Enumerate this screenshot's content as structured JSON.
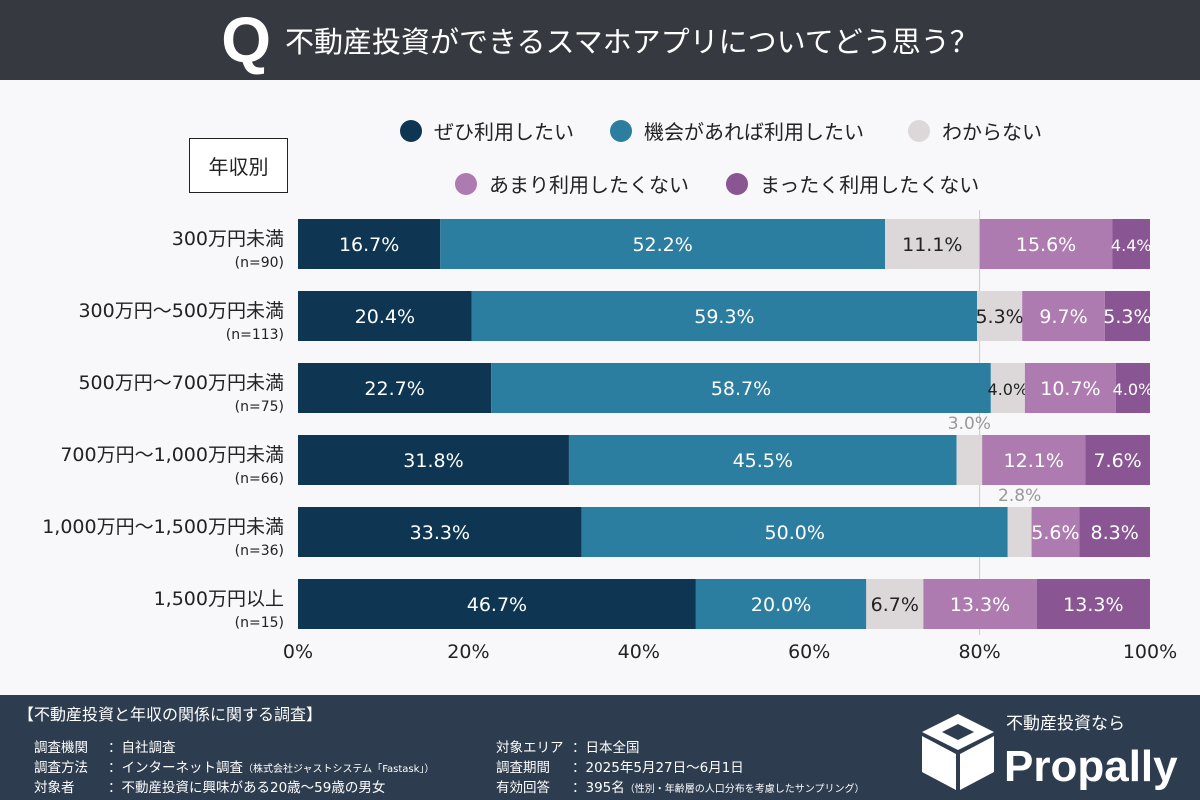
{
  "header": {
    "q_mark": "Q",
    "title": "不動産投資ができるスマホアプリについてどう思う？"
  },
  "category_box": "年収別",
  "chart_data": {
    "type": "bar",
    "orientation": "horizontal",
    "stacked": true,
    "categories": [
      "300万円未満",
      "300万円～500万円未満",
      "500万円～700万円未満",
      "700万円～1,000万円未満",
      "1,000万円～1,500万円未満",
      "1,500万円以上"
    ],
    "sample_sizes": [
      "(n=90)",
      "(n=113)",
      "(n=75)",
      "(n=66)",
      "(n=36)",
      "(n=15)"
    ],
    "series": [
      {
        "name": "ぜひ利用したい",
        "color": "#0e3652",
        "values": [
          16.7,
          20.4,
          22.7,
          31.8,
          33.3,
          46.7
        ]
      },
      {
        "name": "機会があれば利用したい",
        "color": "#2c7ea0",
        "values": [
          52.2,
          59.3,
          58.7,
          45.5,
          50.0,
          20.0
        ]
      },
      {
        "name": "わからない",
        "color": "#dcd8da",
        "values": [
          11.1,
          5.3,
          4.0,
          3.0,
          2.8,
          6.7
        ]
      },
      {
        "name": "あまり利用したくない",
        "color": "#ae7bb0",
        "values": [
          15.6,
          9.7,
          10.7,
          12.1,
          5.6,
          13.3
        ]
      },
      {
        "name": "まったく利用したくない",
        "color": "#895593",
        "values": [
          4.4,
          5.3,
          4.0,
          7.6,
          8.3,
          13.3
        ]
      }
    ],
    "xlim": [
      0,
      100
    ],
    "xticks": [
      "0%",
      "20%",
      "40%",
      "60%",
      "80%",
      "100%"
    ],
    "legend_placement": "top"
  },
  "footer": {
    "title": "【不動産投資と年収の関係に関する調査】",
    "rows": [
      {
        "label": "調査機関",
        "value": "：自社調査",
        "note": ""
      },
      {
        "label": "調査方法",
        "value": "：インターネット調査",
        "note": "（株式会社ジャストシステム「Fastask」）"
      },
      {
        "label": "対象者",
        "value": "：不動産投資に興味がある20歳～59歳の男女",
        "note": ""
      },
      {
        "label": "対象エリア",
        "value": "：日本全国",
        "note": ""
      },
      {
        "label": "調査期間",
        "value": "：2025年5月27日～6月1日",
        "note": ""
      },
      {
        "label": "有効回答",
        "value": "：395名",
        "note": "（性別・年齢層の人口分布を考慮したサンプリング）"
      }
    ]
  },
  "brand": {
    "tagline": "不動産投資なら",
    "name": "Propally"
  }
}
